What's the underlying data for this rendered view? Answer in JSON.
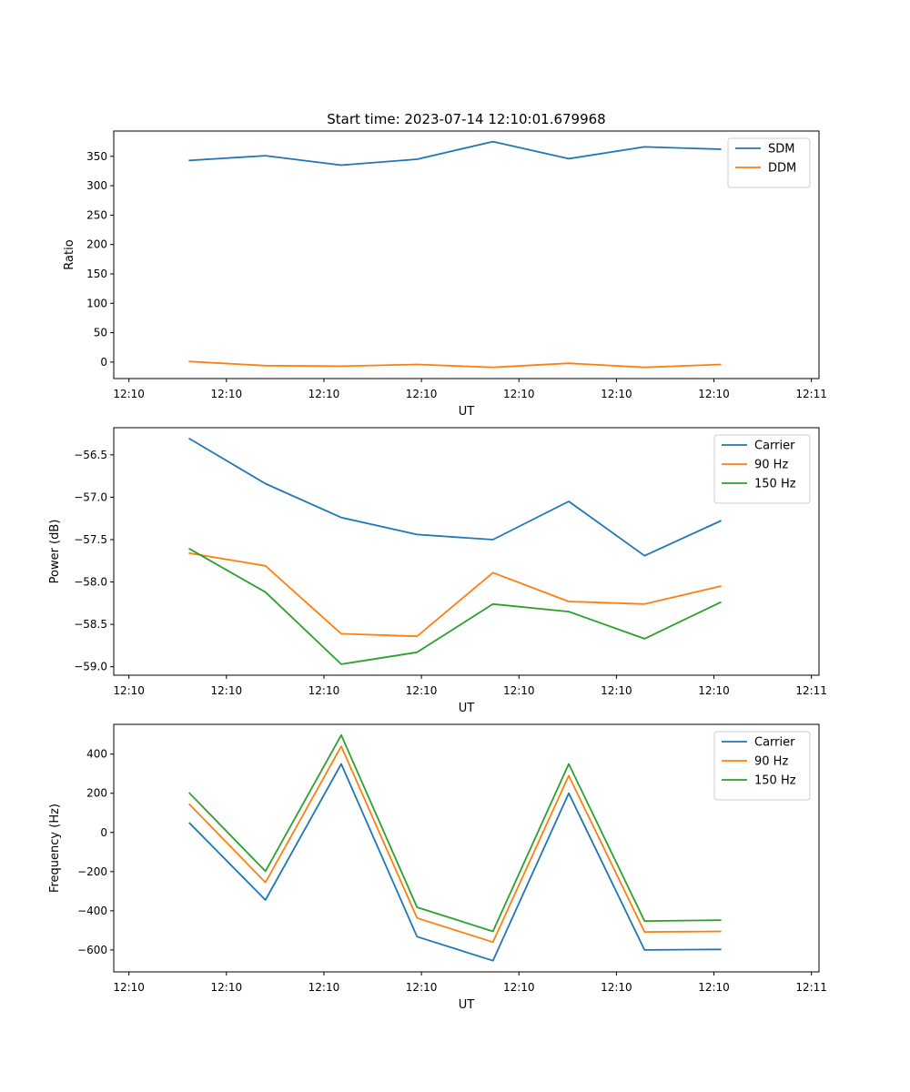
{
  "title": "Start time: 2023-07-14 12:10:01.679968",
  "chart_data": [
    {
      "type": "line",
      "xlabel": "UT",
      "ylabel": "Ratio",
      "x_tick_labels": [
        "12:10",
        "12:10",
        "12:10",
        "12:10",
        "12:10",
        "12:10",
        "12:10"
      ],
      "x_tick_last_label": "12:11",
      "xlim": [
        0,
        9.3
      ],
      "x": [
        1,
        2,
        3,
        4,
        5,
        6,
        7,
        8
      ],
      "ylim": [
        -28,
        393
      ],
      "y_ticks": [
        0,
        50,
        100,
        150,
        200,
        250,
        300,
        350
      ],
      "y_tick_labels": [
        "0",
        "50",
        "100",
        "150",
        "200",
        "250",
        "300",
        "350"
      ],
      "legend": "top-right",
      "series": [
        {
          "name": "SDM",
          "color": "#1f77b4",
          "values": [
            343,
            351,
            335,
            345,
            375,
            346,
            366,
            362
          ]
        },
        {
          "name": "DDM",
          "color": "#ff7f0e",
          "values": [
            1,
            -6,
            -7,
            -4,
            -9,
            -2,
            -9,
            -4
          ]
        }
      ]
    },
    {
      "type": "line",
      "xlabel": "UT",
      "ylabel": "Power (dB)",
      "x_tick_labels": [
        "12:10",
        "12:10",
        "12:10",
        "12:10",
        "12:10",
        "12:10",
        "12:10"
      ],
      "x_tick_last_label": "12:11",
      "xlim": [
        0,
        9.3
      ],
      "x": [
        1,
        2,
        3,
        4,
        5,
        6,
        7,
        8
      ],
      "ylim": [
        -59.1,
        -56.18
      ],
      "y_ticks": [
        -59.0,
        -58.5,
        -58.0,
        -57.5,
        -57.0,
        -56.5
      ],
      "y_tick_labels": [
        "−59.0",
        "−58.5",
        "−58.0",
        "−57.5",
        "−57.0",
        "−56.5"
      ],
      "legend": "top-right",
      "series": [
        {
          "name": "Carrier",
          "color": "#1f77b4",
          "values": [
            -56.31,
            -56.84,
            -57.24,
            -57.44,
            -57.5,
            -57.05,
            -57.69,
            -57.28
          ]
        },
        {
          "name": "90 Hz",
          "color": "#ff7f0e",
          "values": [
            -57.66,
            -57.81,
            -58.61,
            -58.64,
            -57.89,
            -58.23,
            -58.26,
            -58.05
          ]
        },
        {
          "name": "150 Hz",
          "color": "#2ca02c",
          "values": [
            -57.61,
            -58.12,
            -58.97,
            -58.83,
            -58.26,
            -58.35,
            -58.67,
            -58.24
          ]
        }
      ]
    },
    {
      "type": "line",
      "xlabel": "UT",
      "ylabel": "Frequency (Hz)",
      "x_tick_labels": [
        "12:10",
        "12:10",
        "12:10",
        "12:10",
        "12:10",
        "12:10",
        "12:10"
      ],
      "x_tick_last_label": "12:11",
      "xlim": [
        0,
        9.3
      ],
      "x": [
        1,
        2,
        3,
        4,
        5,
        6,
        7,
        8
      ],
      "ylim": [
        -712,
        552
      ],
      "y_ticks": [
        -600,
        -400,
        -200,
        0,
        200,
        400
      ],
      "y_tick_labels": [
        "−600",
        "−400",
        "−200",
        "0",
        "200",
        "400"
      ],
      "legend": "top-right",
      "series": [
        {
          "name": "Carrier",
          "color": "#1f77b4",
          "values": [
            48,
            -345,
            350,
            -532,
            -655,
            200,
            -600,
            -597
          ]
        },
        {
          "name": "90 Hz",
          "color": "#ff7f0e",
          "values": [
            143,
            -255,
            440,
            -437,
            -560,
            290,
            -508,
            -505
          ]
        },
        {
          "name": "150 Hz",
          "color": "#2ca02c",
          "values": [
            200,
            -198,
            497,
            -382,
            -505,
            350,
            -452,
            -448
          ]
        }
      ]
    }
  ]
}
